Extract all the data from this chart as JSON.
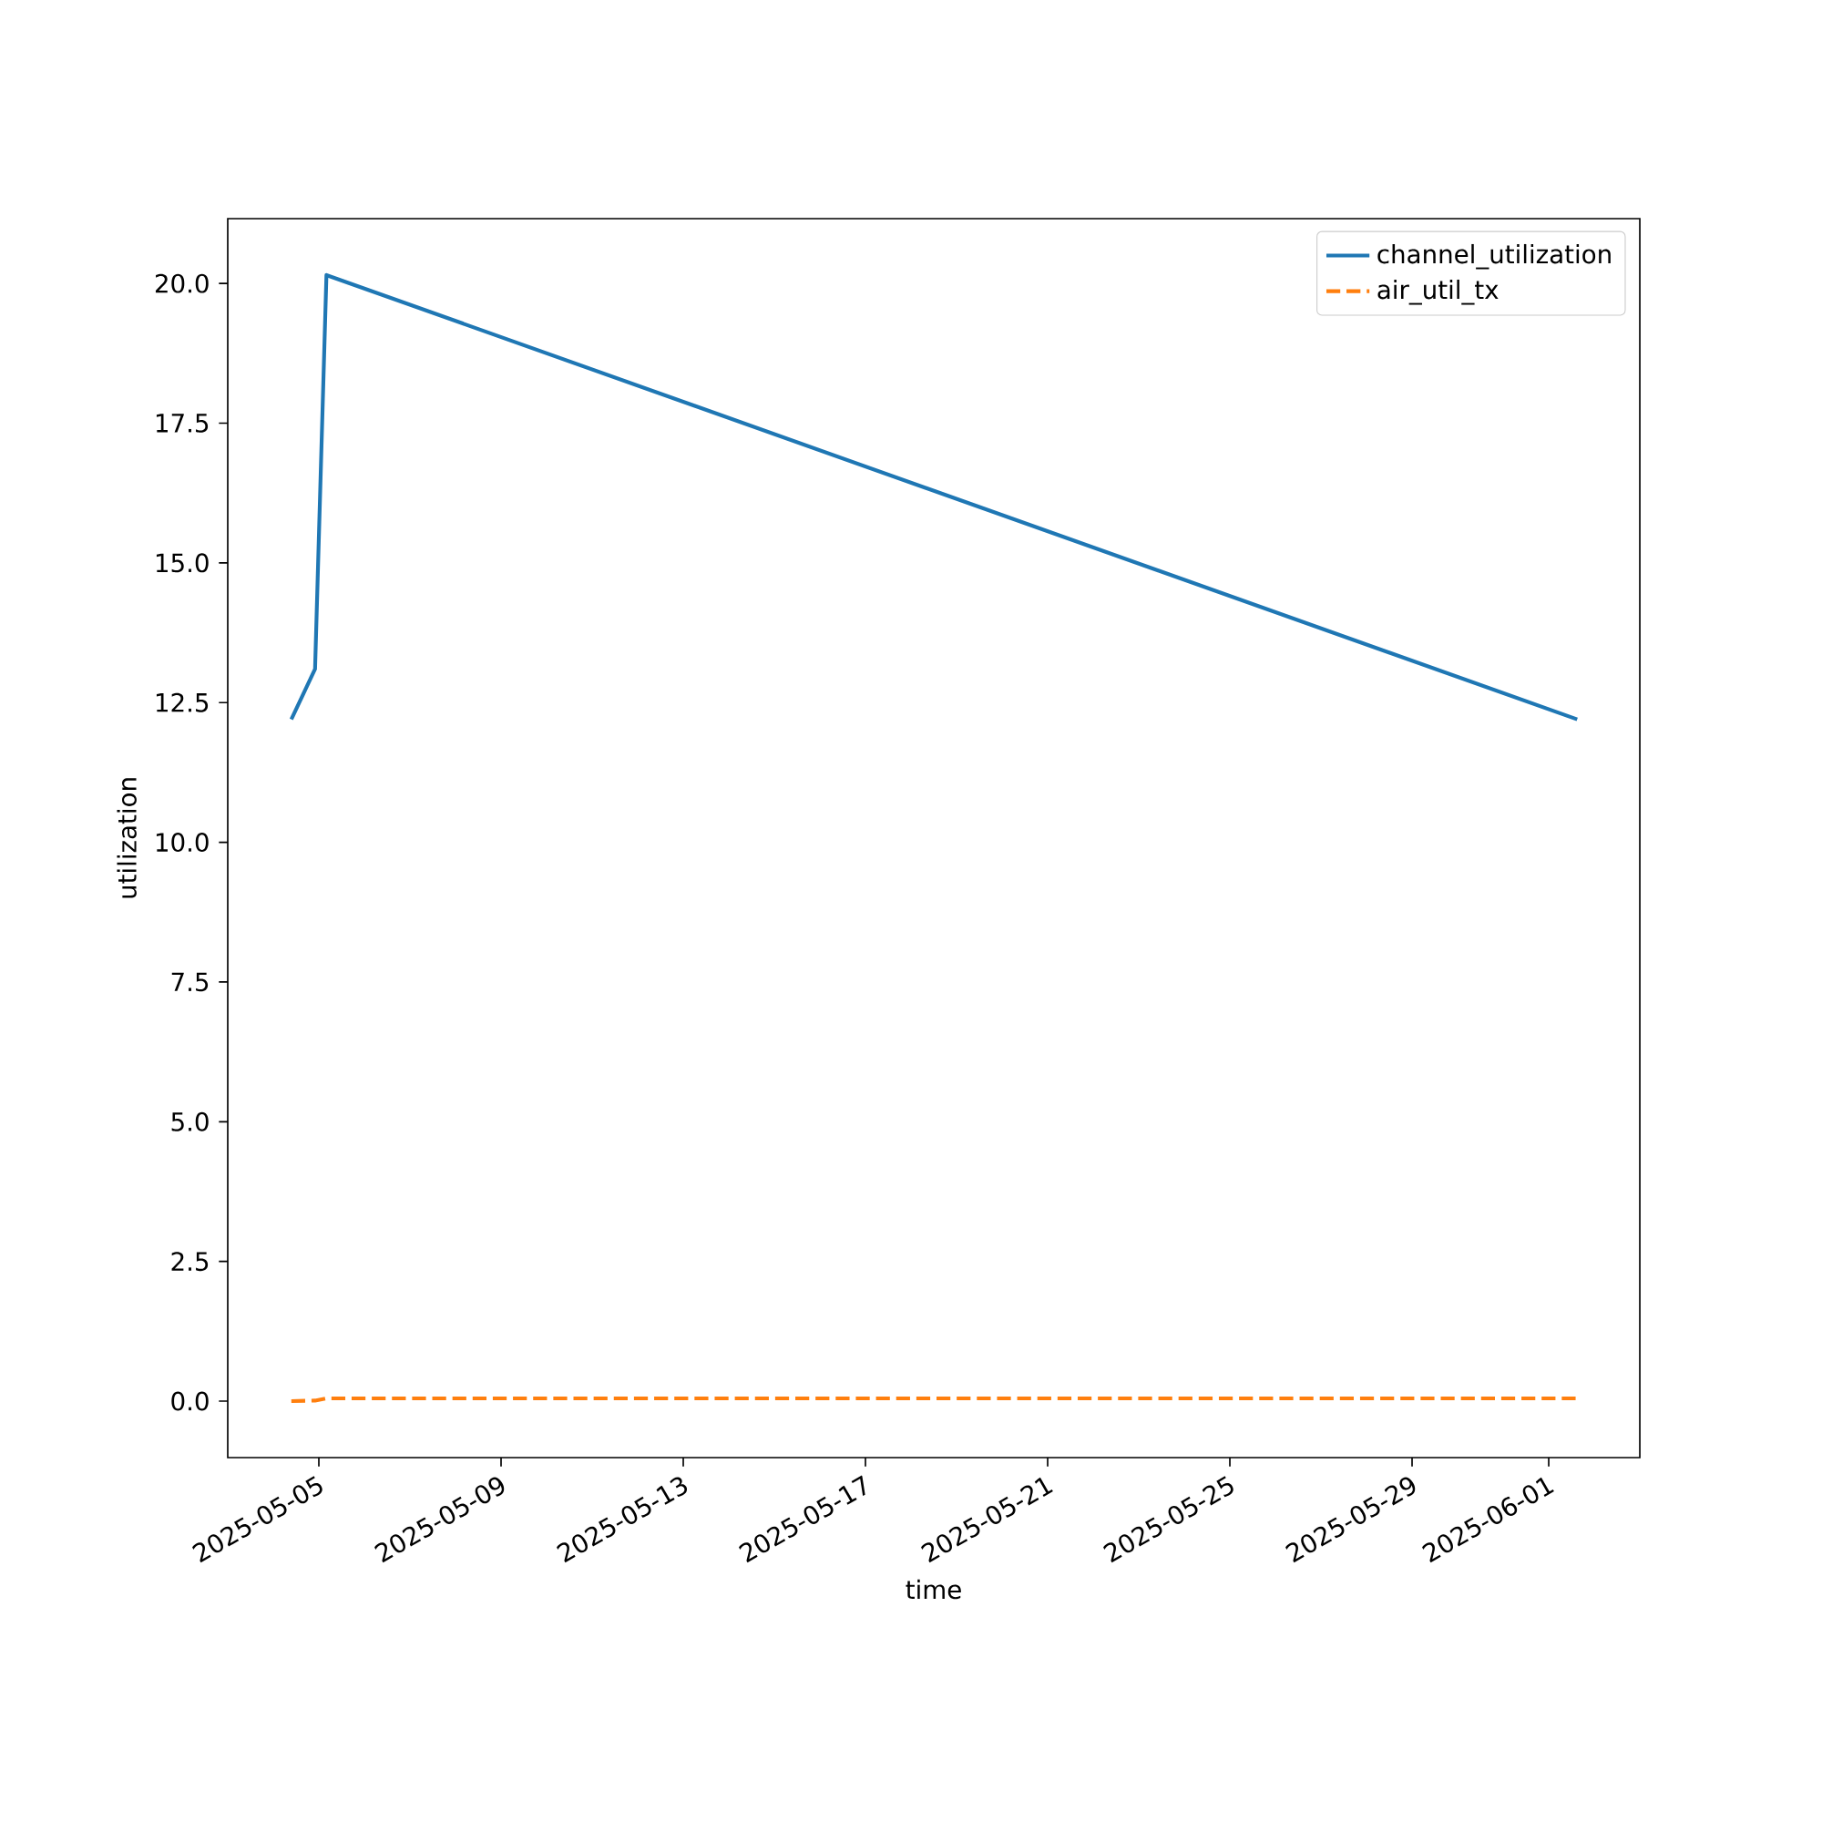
{
  "chart_data": {
    "type": "line",
    "xlabel": "time",
    "ylabel": "utilization",
    "x": [
      "2025-05-04T09:30",
      "2025-05-04T22:00",
      "2025-05-05T04:00",
      "2025-06-01T15:00"
    ],
    "series": [
      {
        "name": "channel_utilization",
        "color": "#1f77b4",
        "line_style": "solid",
        "values": [
          12.2,
          13.1,
          20.15,
          12.2
        ]
      },
      {
        "name": "air_util_tx",
        "color": "#ff7f0e",
        "line_style": "dashed",
        "values": [
          0.0,
          0.01,
          0.05,
          0.05
        ]
      }
    ],
    "xlim": [
      "2025-05-03",
      "2025-06-03"
    ],
    "xticks": [
      "2025-05-05",
      "2025-05-09",
      "2025-05-13",
      "2025-05-17",
      "2025-05-21",
      "2025-05-25",
      "2025-05-29",
      "2025-06-01"
    ],
    "ylim": [
      -1.01,
      21.16
    ],
    "yticks": [
      {
        "value": 0,
        "label": "0.0"
      },
      {
        "value": 2.5,
        "label": "2.5"
      },
      {
        "value": 5,
        "label": "5.0"
      },
      {
        "value": 7.5,
        "label": "7.5"
      },
      {
        "value": 10,
        "label": "10.0"
      },
      {
        "value": 12.5,
        "label": "12.5"
      },
      {
        "value": 15,
        "label": "15.0"
      },
      {
        "value": 17.5,
        "label": "17.5"
      },
      {
        "value": 20,
        "label": "20.0"
      }
    ],
    "grid": false,
    "legend": "top right"
  }
}
